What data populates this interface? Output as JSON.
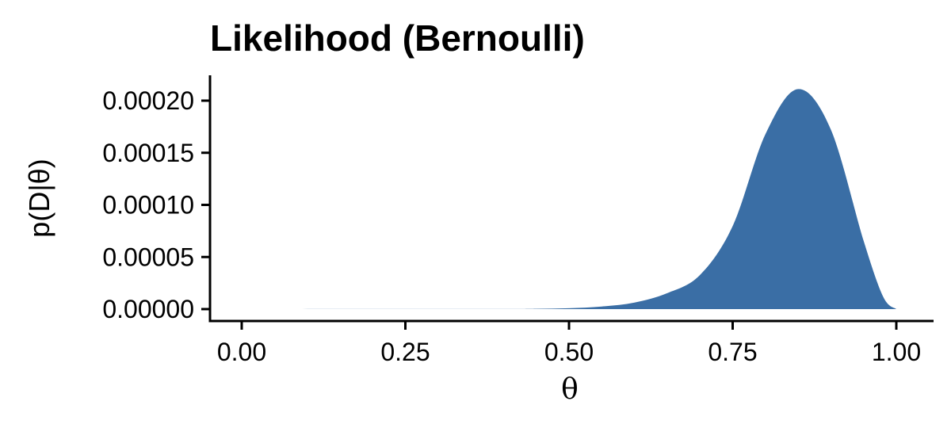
{
  "chart_data": {
    "type": "area",
    "title": "Likelihood (Bernoulli)",
    "xlabel": "θ",
    "ylabel": "p(D|θ)",
    "xlim": [
      0,
      1
    ],
    "ylim": [
      0,
      0.00021
    ],
    "x_ticks": [
      0,
      0.25,
      0.5,
      0.75,
      1
    ],
    "x_tick_labels": [
      "0.00",
      "0.25",
      "0.50",
      "0.75",
      "1.00"
    ],
    "y_ticks": [
      0,
      5e-05,
      0.0001,
      0.00015,
      0.0002
    ],
    "y_tick_labels": [
      "0.00000",
      "0.00005",
      "0.00010",
      "0.00015",
      "0.00020"
    ],
    "grid": false,
    "legend": "none",
    "series": [
      {
        "color": "#3A6EA5",
        "x": [
          0,
          0.4,
          0.45,
          0.5,
          0.55,
          0.6,
          0.65,
          0.7,
          0.75,
          0.8,
          0.85,
          0.9,
          0.95,
          0.98,
          1.0
        ],
        "y": [
          0,
          1e-07,
          3e-07,
          9e-07,
          2.5e-06,
          6.3e-06,
          1.53e-05,
          3.27e-05,
          7.97e-05,
          0.0001678,
          0.0002111,
          0.0001722,
          6.56e-05,
          1.18e-05,
          0
        ]
      }
    ]
  }
}
